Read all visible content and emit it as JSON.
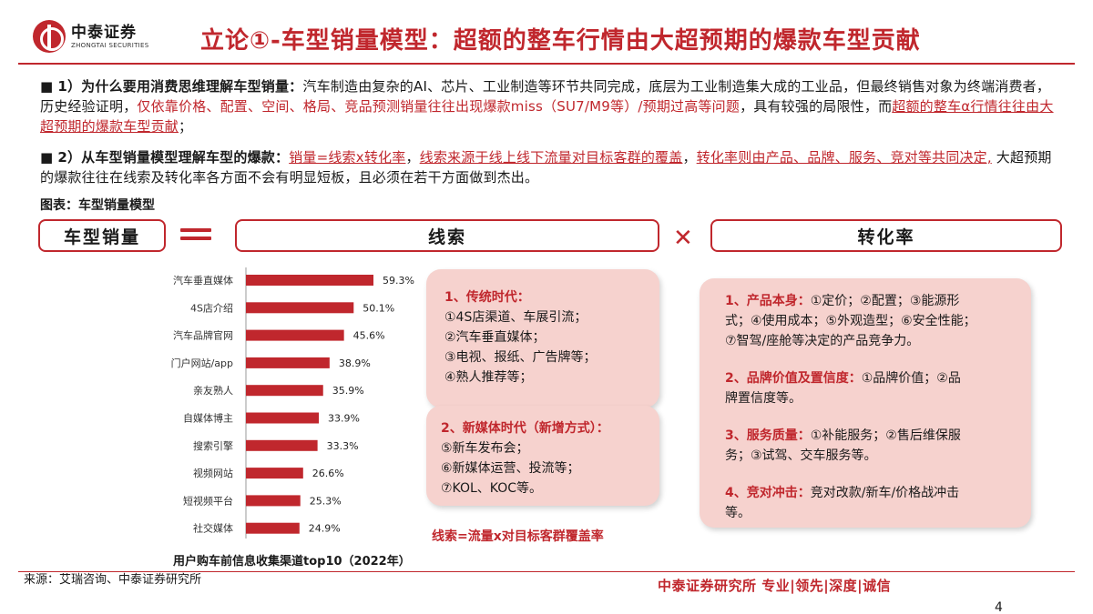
{
  "header": {
    "brand_cn": "中泰证券",
    "brand_en": "ZHONGTAI SECURITIES",
    "title": "立论①-车型销量模型：超额的整车行情由大超预期的爆款车型贡献"
  },
  "points": [
    {
      "marker": "■",
      "heading": "1）为什么要用消费思维理解车型销量：",
      "text1": "汽车制造由复杂的AI、芯片、工业制造等环节共同完成，底层为工业制造集大成的工业品，但最终销售对象为终端消费者，历史经验证明，",
      "red1": "仅依靠价格、配置、空间、格局、竞品预测销量往往出现爆款miss（SU7/M9等）/预期过高等问题",
      "text2": "，具有较强的局限性，而",
      "red2": "超额的整车α行情往往由大超预期的爆款车型贡献",
      "text3": "；"
    },
    {
      "marker": "■",
      "heading": "2）从车型销量模型理解车型的爆款：",
      "red1": "销量=线索x转化率",
      "text1": "，",
      "red2": "线索来源于线上线下流量对目标客群的覆盖",
      "text2": "，",
      "red3": "转化率则由产品、品牌、服务、竞对等共同决定,",
      "text3": " 大超预期的爆款往往在线索及转化率各方面不会有明显短板，且必须在若干方面做到杰出。"
    }
  ],
  "figure": {
    "label": "图表：车型销量模型",
    "box_sales": "车型销量",
    "box_leads": "线索",
    "box_conversion": "转化率"
  },
  "chart_data": {
    "type": "bar",
    "orientation": "horizontal",
    "categories": [
      "汽车垂直媒体",
      "4S店介绍",
      "汽车品牌官网",
      "门户网站/app",
      "亲友熟人",
      "自媒体博主",
      "搜索引擎",
      "视频网站",
      "短视频平台",
      "社交媒体"
    ],
    "values": [
      59.3,
      50.1,
      45.6,
      38.9,
      35.9,
      33.9,
      33.3,
      26.6,
      25.3,
      24.9
    ],
    "value_labels": [
      "59.3%",
      "50.1%",
      "45.6%",
      "38.9%",
      "35.9%",
      "33.9%",
      "33.3%",
      "26.6%",
      "25.3%",
      "24.9%"
    ],
    "color": "#c0272d",
    "title": "用户购车前信息收集渠道top10（2022年）",
    "xlim": [
      0,
      60
    ],
    "grid": false,
    "legend": "none"
  },
  "card_traditional": {
    "heading": "1、传统时代：",
    "items": [
      "①4S店渠道、车展引流；",
      "②汽车垂直媒体；",
      "③电视、报纸、广告牌等；",
      "④熟人推荐等；"
    ]
  },
  "card_newmedia": {
    "heading": "2、新媒体时代（新增方式）：",
    "items": [
      "⑤新车发布会；",
      "⑥新媒体运营、投流等；",
      "⑦KOL、KOC等。"
    ]
  },
  "formula": "线索=流量x对目标客群覆盖率",
  "card_conversion": {
    "items": [
      {
        "heading": "1、产品本身：",
        "lines": [
          "①定价；②配置；③能源形",
          "式；④使用成本；⑤外观造型；⑥安全性能；",
          "⑦智驾/座舱等决定的产品竞争力。"
        ]
      },
      {
        "heading": "2、品牌价值及置信度：",
        "lines": [
          "①品牌价值；②品",
          "牌置信度等。"
        ]
      },
      {
        "heading": "3、服务质量：",
        "lines": [
          "①补能服务；②售后维保服",
          "务；③试驾、交车服务等。"
        ]
      },
      {
        "heading": "4、竞对冲击：",
        "lines": [
          "竞对改款/新车/价格战冲击",
          "等。"
        ]
      }
    ]
  },
  "source": "来源：艾瑞咨询、中泰证券研究所",
  "footer": "中泰证券研究所 专业|领先|深度|诚信",
  "page_number": "4",
  "colors": {
    "accent": "#c0272d",
    "card_bg": "#f6d2ce"
  }
}
